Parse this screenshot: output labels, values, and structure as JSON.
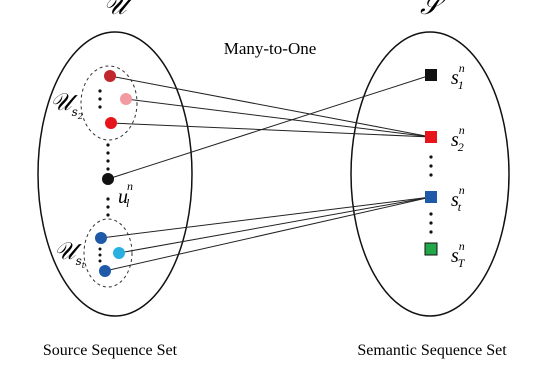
{
  "sets": {
    "source": {
      "symbol": "𝒰",
      "caption": "Source Sequence Set",
      "subset_top_symbol": "𝒰",
      "subset_top_sub": "s",
      "subset_top_subsub": "2",
      "subset_bottom_symbol": "𝒰",
      "subset_bottom_sub": "s",
      "subset_bottom_subsub": "t",
      "point_label_base": "u",
      "point_label_sup": "n",
      "point_label_sub": "l"
    },
    "semantic": {
      "symbol": "𝒮",
      "caption": "Semantic Sequence Set",
      "items": [
        {
          "base": "s",
          "sup": "n",
          "sub": "1"
        },
        {
          "base": "s",
          "sup": "n",
          "sub": "2"
        },
        {
          "base": "s",
          "sup": "n",
          "sub": "t"
        },
        {
          "base": "s",
          "sup": "n",
          "sub": "T"
        }
      ]
    }
  },
  "mapping_label": "Many-to-One",
  "colors": {
    "dark_red": "#c0282d",
    "pink": "#f29aa0",
    "red": "#e8141c",
    "black": "#111111",
    "blue": "#1f5aa8",
    "cyan": "#29b0e0",
    "green": "#22a84a",
    "line": "#222222"
  }
}
